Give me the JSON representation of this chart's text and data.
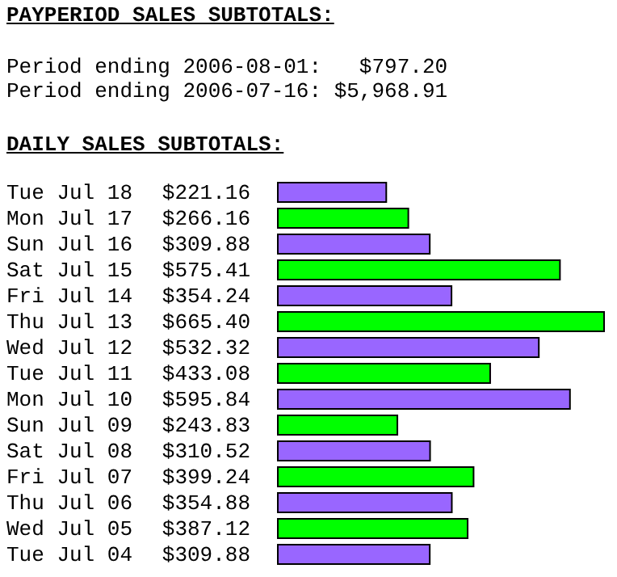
{
  "chart_data": {
    "type": "bar",
    "orientation": "horizontal",
    "title": "PAYPERIOD SALES SUBTOTALS:",
    "subtitle": "DAILY SALES SUBTOTALS:",
    "annotations": [
      "Period ending 2006-08-01:   $797.20",
      "Period ending 2006-07-16: $5,968.91"
    ],
    "categories": [
      "Tue Jul 18",
      "Mon Jul 17",
      "Sun Jul 16",
      "Sat Jul 15",
      "Fri Jul 14",
      "Thu Jul 13",
      "Wed Jul 12",
      "Tue Jul 11",
      "Mon Jul 10",
      "Sun Jul 09",
      "Sat Jul 08",
      "Fri Jul 07",
      "Thu Jul 06",
      "Wed Jul 05",
      "Tue Jul 04"
    ],
    "values": [
      221.16,
      266.16,
      309.88,
      575.41,
      354.24,
      665.4,
      532.32,
      433.08,
      595.84,
      243.83,
      310.52,
      399.24,
      354.88,
      387.12,
      309.88
    ],
    "value_labels": [
      "$221.16",
      "$266.16",
      "$309.88",
      "$575.41",
      "$354.24",
      "$665.40",
      "$532.32",
      "$433.08",
      "$595.84",
      "$243.83",
      "$310.52",
      "$399.24",
      "$354.88",
      "$387.12",
      "$309.88"
    ],
    "colors": [
      "#9966ff",
      "#00ff00",
      "#9966ff",
      "#00ff00",
      "#9966ff",
      "#00ff00",
      "#9966ff",
      "#00ff00",
      "#9966ff",
      "#00ff00",
      "#9966ff",
      "#00ff00",
      "#9966ff",
      "#00ff00",
      "#9966ff"
    ]
  }
}
